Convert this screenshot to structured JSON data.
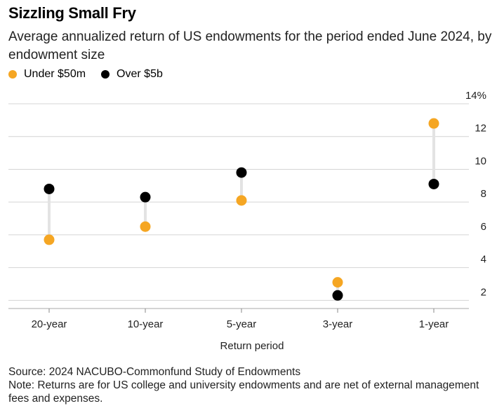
{
  "chart_data": {
    "type": "dumbbell",
    "title": "Sizzling Small Fry",
    "subtitle": "Average annualized return of US endowments for the period ended June 2024, by endowment size",
    "xlabel": "Return period",
    "ylabel": "",
    "categories": [
      "20-year",
      "10-year",
      "5-year",
      "3-year",
      "1-year"
    ],
    "series": [
      {
        "name": "Under $50m",
        "color": "#f5a623",
        "values": [
          5.7,
          6.5,
          8.1,
          3.1,
          12.8
        ]
      },
      {
        "name": "Over $5b",
        "color": "#000000",
        "values": [
          8.8,
          8.3,
          9.8,
          2.3,
          9.1
        ]
      }
    ],
    "ylim": [
      1.5,
      14
    ],
    "yticks": [
      {
        "value": 2,
        "label": "2"
      },
      {
        "value": 4,
        "label": "4"
      },
      {
        "value": 6,
        "label": "6"
      },
      {
        "value": 8,
        "label": "8"
      },
      {
        "value": 10,
        "label": "10"
      },
      {
        "value": 12,
        "label": "12"
      },
      {
        "value": 14,
        "label": "14%"
      }
    ],
    "connector_color": "#e3e3e3",
    "grid": true
  },
  "footer": {
    "source": "Source: 2024 NACUBO-Commonfund Study of Endowments",
    "note": "Note: Returns are for US college and university endowments and are net of external management fees and expenses."
  }
}
